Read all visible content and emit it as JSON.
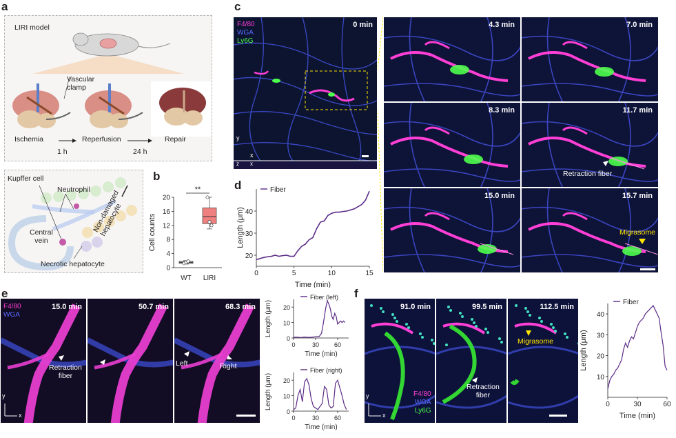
{
  "panels": {
    "a": "a",
    "b": "b",
    "c": "c",
    "d": "d",
    "e": "e",
    "f": "f"
  },
  "a": {
    "model_title": "LIRI model",
    "clamp_label": "Vascular\nclamp",
    "stages": [
      "Ischemia",
      "Reperfusion",
      "Repair"
    ],
    "durations": [
      "1 h",
      "24 h"
    ],
    "cells": {
      "kupffer": "Kupffer cell",
      "neutrophil": "Neutrophil",
      "central_vein": "Central\nvein",
      "non_damaged": "Non-damaged\nhepatocyte",
      "necrotic": "Necrotic hepatocyte"
    }
  },
  "b": {
    "chart_data": {
      "type": "box",
      "categories": [
        "WT",
        "LIRI"
      ],
      "ylabel": "Cell counts",
      "ylim": [
        0,
        20
      ],
      "yticks": [
        0,
        4,
        8,
        12,
        16,
        20
      ],
      "significance": "**",
      "boxes": [
        {
          "name": "WT",
          "min": 1.0,
          "q1": 1.2,
          "median": 1.5,
          "q3": 1.8,
          "max": 2.0,
          "points": [
            1.2,
            1.5,
            1.8
          ],
          "color": "#b0b0b0"
        },
        {
          "name": "LIRI",
          "min": 11.0,
          "q1": 12.5,
          "median": 14.5,
          "q3": 17.0,
          "max": 20.0,
          "points": [
            20.0,
            13.0,
            12.0
          ],
          "color": "#f08080"
        }
      ]
    }
  },
  "c": {
    "channels": [
      {
        "name": "F4/80",
        "color": "#ff3fd6"
      },
      {
        "name": "WGA",
        "color": "#5a6cff"
      },
      {
        "name": "Ly6G",
        "color": "#4cff4c"
      }
    ],
    "axes": {
      "y": "y",
      "x": "x",
      "z": "z",
      "x2": "x"
    },
    "times": [
      "0 min",
      "4.3 min",
      "7.0 min",
      "8.3 min",
      "11.7 min",
      "15.0 min",
      "15.7 min"
    ],
    "retraction_fiber": "Retraction fiber",
    "migrasome": "Migrasome"
  },
  "d": {
    "chart_data": {
      "type": "line",
      "series": [
        {
          "name": "Fiber",
          "color": "#5b2a86",
          "x": [
            0,
            0.5,
            1,
            1.5,
            2,
            2.5,
            3,
            3.5,
            4,
            4.5,
            5,
            5.5,
            6,
            6.5,
            7,
            7.5,
            8,
            8.5,
            9,
            9.5,
            10,
            10.5,
            11,
            11.5,
            12,
            12.5,
            13,
            13.5,
            14,
            14.5,
            15
          ],
          "y": [
            18,
            18.5,
            19,
            19.3,
            19.5,
            20,
            19.5,
            19.8,
            20,
            19.5,
            19.5,
            22,
            24,
            25,
            27,
            28,
            32,
            35,
            35.5,
            38,
            39,
            39.5,
            39.5,
            39.8,
            40,
            40.5,
            41,
            42,
            43,
            45,
            49
          ]
        }
      ],
      "xlabel": "Time (min)",
      "ylabel": "Length (μm)",
      "xlim": [
        0,
        15
      ],
      "ylim": [
        15,
        50
      ],
      "xticks": [
        0,
        5,
        10,
        15
      ],
      "yticks": [
        20,
        30,
        40
      ],
      "legend": "top-left"
    }
  },
  "e": {
    "channels": [
      {
        "name": "F4/80",
        "color": "#ff3fd6"
      },
      {
        "name": "WGA",
        "color": "#5a6cff"
      }
    ],
    "axes": {
      "y": "y",
      "x": "x"
    },
    "times": [
      "15.0 min",
      "50.7 min",
      "68.3 min"
    ],
    "retraction_fiber": "Retraction\nfiber",
    "left": "Left",
    "right": "Right",
    "chart_data": [
      {
        "type": "line",
        "series": [
          {
            "name": "Fiber (left)",
            "color": "#5b2a86",
            "x": [
              0,
              5,
              10,
              15,
              20,
              25,
              30,
              35,
              38,
              40,
              42,
              44,
              46,
              48,
              50,
              52,
              54,
              56,
              58,
              60,
              62,
              64,
              66,
              68,
              70
            ],
            "y": [
              0.5,
              0.5,
              0.3,
              0.6,
              0.4,
              0.5,
              0.8,
              1.0,
              3,
              8,
              14,
              20,
              24,
              22,
              19,
              14,
              12,
              16,
              14,
              9,
              10,
              11,
              10,
              11,
              10
            ]
          }
        ],
        "xlabel": "Time (min)",
        "ylabel": "Length (μm)",
        "xlim": [
          0,
          75
        ],
        "ylim": [
          0,
          25
        ],
        "xticks": [
          0,
          30,
          60
        ],
        "yticks": [
          0,
          10,
          20
        ],
        "legend": "top-right"
      },
      {
        "type": "line",
        "series": [
          {
            "name": "Fiber (right)",
            "color": "#5b2a86",
            "x": [
              0,
              3,
              6,
              9,
              12,
              15,
              18,
              21,
              24,
              27,
              30,
              33,
              36,
              39,
              42,
              45,
              48,
              51,
              54,
              57,
              60,
              63,
              66,
              69,
              72
            ],
            "y": [
              1,
              2,
              10,
              14,
              6,
              19,
              21,
              17,
              8,
              3,
              2,
              1,
              3,
              5,
              16,
              14,
              4,
              2,
              3,
              18,
              20,
              15,
              10,
              4,
              1
            ]
          }
        ],
        "xlabel": "Time (min)",
        "ylabel": "Length (μm)",
        "xlim": [
          0,
          75
        ],
        "ylim": [
          0,
          25
        ],
        "xticks": [
          0,
          30,
          60
        ],
        "yticks": [
          0,
          10,
          20
        ],
        "legend": "top-right"
      }
    ]
  },
  "f": {
    "channels": [
      {
        "name": "F4/80",
        "color": "#ff3fd6"
      },
      {
        "name": "WGA",
        "color": "#5a6cff"
      },
      {
        "name": "Ly6G",
        "color": "#4cff4c"
      }
    ],
    "axes": {
      "y": "y",
      "x": "x"
    },
    "times": [
      "91.0 min",
      "99.5 min",
      "112.5 min"
    ],
    "retraction_fiber": "Retraction\nfiber",
    "migrasome": "Migrasome",
    "chart_data": {
      "type": "line",
      "series": [
        {
          "name": "Fiber",
          "color": "#5b2a86",
          "x": [
            0,
            2,
            4,
            6,
            8,
            10,
            12,
            14,
            16,
            18,
            20,
            22,
            24,
            26,
            28,
            30,
            32,
            34,
            36,
            38,
            40,
            42,
            44,
            46,
            48,
            50,
            52,
            54,
            56,
            58,
            60
          ],
          "y": [
            4,
            8,
            10,
            11,
            13,
            14,
            16,
            18,
            23,
            26,
            24,
            27,
            29,
            28,
            31,
            34,
            36,
            37,
            38,
            40,
            41,
            42,
            43,
            44,
            42,
            40,
            38,
            31,
            25,
            15,
            13
          ]
        }
      ],
      "xlabel": "Time (min)",
      "ylabel": "Length (μm)",
      "xlim": [
        0,
        60
      ],
      "ylim": [
        0,
        45
      ],
      "xticks": [
        0,
        30,
        60
      ],
      "yticks": [
        10,
        20,
        30,
        40
      ],
      "legend": "top-left"
    }
  }
}
